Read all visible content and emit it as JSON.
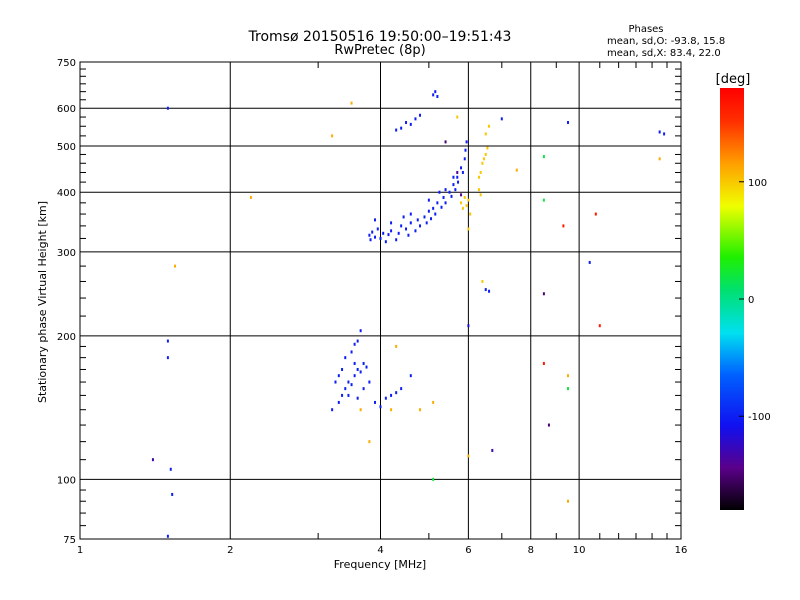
{
  "chart_data": {
    "type": "scatter",
    "title": "Tromsø 20150516 19:50:00–19:51:43",
    "subtitle": "RwPretec (8p)",
    "xlabel": "Frequency [MHz]",
    "ylabel": "Stationary phase Virtual Height [km]",
    "x_scale": "log",
    "y_scale": "log",
    "xlim": [
      1,
      16
    ],
    "ylim": [
      75,
      750
    ],
    "x_ticks": [
      1,
      2,
      4,
      6,
      8,
      10,
      16
    ],
    "x_tick_labels": [
      "1",
      "2",
      "4",
      "6",
      "8",
      "10",
      "16"
    ],
    "y_ticks": [
      75,
      100,
      200,
      300,
      400,
      500,
      600,
      750
    ],
    "y_tick_labels": [
      "75",
      "100",
      "200",
      "300",
      "400",
      "500",
      "600",
      "750"
    ],
    "grid": true,
    "legend": {
      "title": "Phases",
      "lines": [
        "mean, sd,O: -93.8, 15.8",
        "mean, sd,X:  83.4, 22.0"
      ],
      "placement": "top-right"
    },
    "colorbar": {
      "label": "[deg]",
      "range": [
        -180,
        180
      ],
      "ticks": [
        100,
        0,
        -100
      ],
      "tick_labels": [
        "100",
        "0",
        "-100"
      ]
    },
    "series": [
      {
        "points": [
          [
            3.8,
            325,
            -100
          ],
          [
            3.82,
            318,
            -100
          ],
          [
            3.85,
            330,
            -100
          ],
          [
            3.9,
            322,
            -100
          ],
          [
            3.95,
            335,
            -100
          ],
          [
            4.0,
            320,
            -100
          ],
          [
            4.05,
            328,
            -100
          ],
          [
            4.1,
            315,
            -100
          ],
          [
            4.15,
            326,
            -100
          ],
          [
            4.2,
            332,
            -100
          ],
          [
            4.3,
            318,
            -100
          ],
          [
            4.35,
            328,
            -100
          ],
          [
            4.4,
            340,
            -100
          ],
          [
            4.5,
            335,
            -100
          ],
          [
            4.55,
            325,
            -100
          ],
          [
            4.6,
            345,
            -100
          ],
          [
            4.7,
            332,
            -100
          ],
          [
            4.75,
            350,
            -100
          ],
          [
            4.8,
            340,
            -100
          ],
          [
            4.9,
            355,
            -100
          ],
          [
            4.95,
            345,
            -100
          ],
          [
            5.0,
            365,
            -100
          ],
          [
            5.05,
            352,
            -100
          ],
          [
            5.1,
            370,
            -100
          ],
          [
            5.15,
            360,
            -100
          ],
          [
            5.2,
            380,
            -100
          ],
          [
            5.3,
            372,
            -100
          ],
          [
            5.35,
            390,
            -100
          ],
          [
            5.4,
            380,
            -100
          ],
          [
            5.5,
            400,
            -100
          ],
          [
            5.55,
            392,
            -100
          ],
          [
            5.6,
            415,
            -100
          ],
          [
            5.65,
            405,
            -100
          ],
          [
            5.7,
            430,
            -100
          ],
          [
            5.72,
            420,
            -100
          ],
          [
            5.8,
            450,
            -100
          ],
          [
            5.85,
            440,
            -100
          ],
          [
            5.9,
            470,
            -100
          ],
          [
            5.92,
            490,
            -100
          ],
          [
            5.95,
            510,
            -100
          ],
          [
            3.9,
            350,
            -100
          ],
          [
            4.6,
            360,
            -100
          ],
          [
            5.0,
            385,
            -100
          ],
          [
            5.4,
            405,
            -100
          ],
          [
            4.2,
            345,
            -100
          ],
          [
            4.45,
            355,
            -100
          ],
          [
            5.25,
            400,
            -100
          ],
          [
            5.6,
            430,
            -100
          ],
          [
            4.3,
            540,
            -100
          ],
          [
            4.4,
            545,
            -100
          ],
          [
            4.5,
            560,
            -100
          ],
          [
            4.6,
            555,
            -100
          ],
          [
            4.7,
            570,
            -100
          ],
          [
            4.8,
            580,
            -100
          ],
          [
            5.1,
            640,
            -100
          ],
          [
            5.2,
            635,
            -100
          ],
          [
            5.15,
            650,
            -100
          ],
          [
            3.2,
            140,
            -100
          ],
          [
            3.3,
            145,
            -100
          ],
          [
            3.35,
            150,
            -100
          ],
          [
            3.4,
            155,
            -100
          ],
          [
            3.45,
            160,
            -100
          ],
          [
            3.5,
            158,
            -100
          ],
          [
            3.55,
            165,
            -100
          ],
          [
            3.6,
            170,
            -100
          ],
          [
            3.65,
            168,
            -100
          ],
          [
            3.7,
            175,
            -100
          ],
          [
            3.75,
            172,
            -100
          ],
          [
            3.4,
            180,
            -100
          ],
          [
            3.5,
            185,
            -100
          ],
          [
            3.6,
            195,
            -100
          ],
          [
            3.65,
            205,
            -100
          ],
          [
            3.55,
            192,
            -100
          ],
          [
            3.3,
            165,
            -100
          ],
          [
            3.45,
            150,
            -100
          ],
          [
            3.6,
            148,
            -100
          ],
          [
            3.7,
            155,
            -100
          ],
          [
            3.8,
            160,
            -100
          ],
          [
            3.35,
            170,
            -100
          ],
          [
            3.25,
            160,
            -100
          ],
          [
            3.55,
            175,
            -100
          ],
          [
            3.9,
            145,
            -100
          ],
          [
            4.0,
            142,
            -100
          ],
          [
            4.1,
            148,
            -100
          ],
          [
            4.2,
            150,
            -100
          ],
          [
            4.3,
            152,
            -100
          ],
          [
            4.4,
            155,
            -100
          ],
          [
            4.6,
            165,
            -100
          ],
          [
            1.5,
            195,
            -100
          ],
          [
            1.5,
            180,
            -100
          ],
          [
            1.52,
            105,
            -100
          ],
          [
            1.53,
            93,
            -100
          ],
          [
            1.5,
            76,
            -100
          ],
          [
            1.4,
            110,
            -130
          ],
          [
            1.5,
            600,
            -100
          ],
          [
            6.5,
            250,
            -100
          ],
          [
            6.6,
            248,
            -100
          ],
          [
            6.0,
            210,
            -110
          ],
          [
            6.7,
            115,
            -130
          ],
          [
            7.0,
            570,
            -100
          ],
          [
            9.5,
            560,
            -100
          ],
          [
            10.5,
            285,
            -100
          ],
          [
            14.5,
            535,
            -100
          ],
          [
            14.8,
            530,
            -100
          ],
          [
            8.5,
            245,
            -150
          ],
          [
            8.7,
            130,
            -150
          ],
          [
            5.4,
            510,
            -150
          ],
          [
            5.7,
            440,
            -140
          ],
          [
            5.8,
            395,
            -140
          ]
        ]
      },
      {
        "points": [
          [
            6.3,
            430,
            100
          ],
          [
            6.35,
            440,
            100
          ],
          [
            6.4,
            460,
            100
          ],
          [
            6.5,
            480,
            100
          ],
          [
            6.45,
            470,
            100
          ],
          [
            6.55,
            495,
            100
          ],
          [
            6.3,
            405,
            100
          ],
          [
            6.35,
            395,
            100
          ],
          [
            5.8,
            380,
            100
          ],
          [
            5.85,
            370,
            100
          ],
          [
            5.9,
            390,
            100
          ],
          [
            5.95,
            375,
            100
          ],
          [
            6.0,
            385,
            100
          ],
          [
            6.05,
            360,
            100
          ],
          [
            6.0,
            335,
            100
          ],
          [
            6.5,
            530,
            100
          ],
          [
            6.6,
            550,
            100
          ],
          [
            6.4,
            260,
            100
          ],
          [
            5.7,
            575,
            100
          ],
          [
            3.5,
            615,
            110
          ],
          [
            3.2,
            525,
            110
          ],
          [
            2.2,
            390,
            110
          ],
          [
            1.55,
            280,
            110
          ],
          [
            4.3,
            190,
            110
          ],
          [
            4.2,
            140,
            110
          ],
          [
            4.8,
            140,
            110
          ],
          [
            5.1,
            145,
            110
          ],
          [
            3.65,
            140,
            110
          ],
          [
            3.8,
            120,
            110
          ],
          [
            7.5,
            445,
            110
          ],
          [
            14.5,
            470,
            110
          ],
          [
            9.5,
            165,
            110
          ],
          [
            9.5,
            90,
            110
          ],
          [
            6.0,
            112,
            110
          ]
        ]
      },
      {
        "points": [
          [
            8.5,
            475,
            20
          ],
          [
            8.5,
            385,
            20
          ],
          [
            9.5,
            155,
            20
          ],
          [
            5.1,
            100,
            20
          ]
        ]
      },
      {
        "points": [
          [
            9.3,
            340,
            165
          ],
          [
            8.5,
            175,
            165
          ],
          [
            10.8,
            360,
            165
          ],
          [
            11.0,
            210,
            165
          ]
        ]
      }
    ]
  }
}
